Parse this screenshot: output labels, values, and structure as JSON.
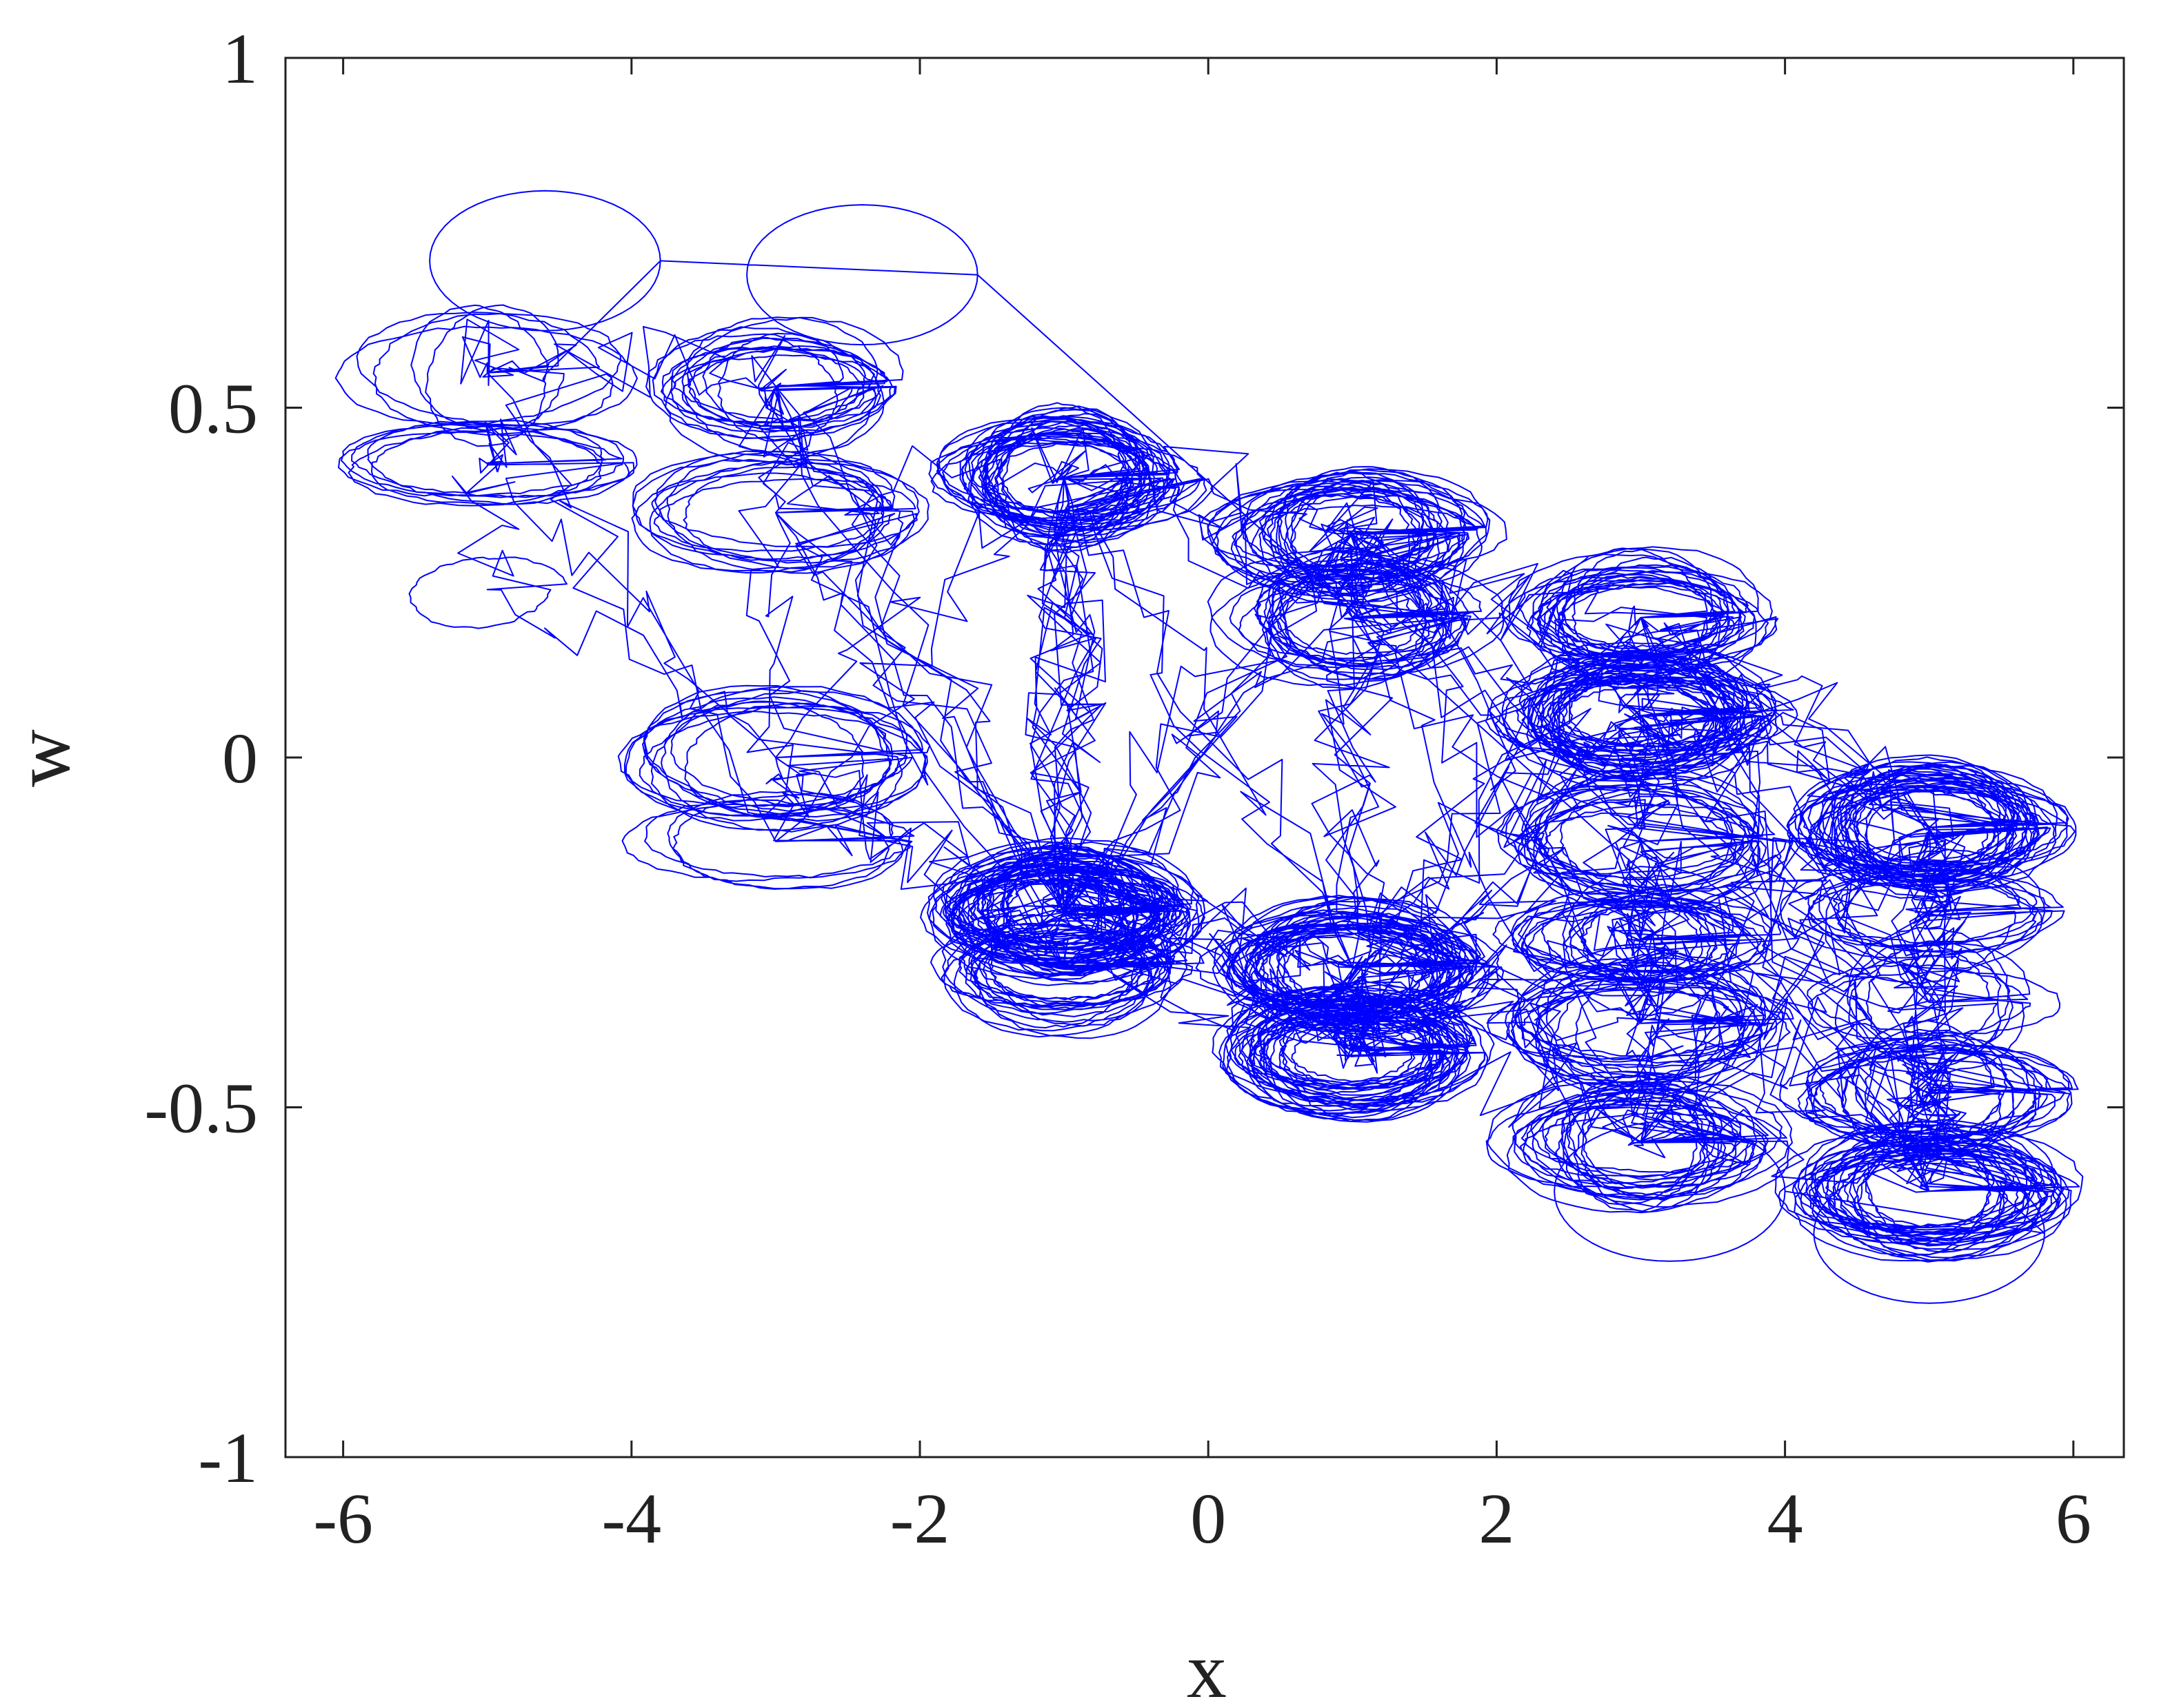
{
  "chart_data": {
    "type": "line",
    "title": "",
    "xlabel": "x",
    "ylabel": "w",
    "xlim": [
      -6.4,
      6.35
    ],
    "ylim": [
      -1,
      1
    ],
    "xticks": [
      -6,
      -4,
      -2,
      0,
      2,
      4,
      6
    ],
    "yticks": [
      -1,
      -0.5,
      0,
      0.5,
      1
    ],
    "xtick_labels": [
      "-6",
      "-4",
      "-2",
      "0",
      "2",
      "4",
      "6"
    ],
    "ytick_labels": [
      "-1",
      "-0.5",
      "0",
      "0.5",
      "1"
    ],
    "grid": false,
    "legend": "none",
    "series_color": "#0000ff",
    "wells_x": [
      -5,
      -3,
      -1,
      1,
      3,
      5
    ],
    "wells_w": [
      [
        0.55,
        0.42,
        0.24
      ],
      [
        0.53,
        0.35,
        0.0,
        -0.12
      ],
      [
        0.4,
        -0.22,
        -0.3
      ],
      [
        0.32,
        0.2,
        -0.3,
        -0.42
      ],
      [
        0.2,
        0.06,
        -0.12,
        -0.26,
        -0.38,
        -0.55
      ],
      [
        -0.1,
        -0.22,
        -0.35,
        -0.48,
        -0.62
      ]
    ],
    "w_extent": [
      -0.78,
      0.81
    ]
  }
}
